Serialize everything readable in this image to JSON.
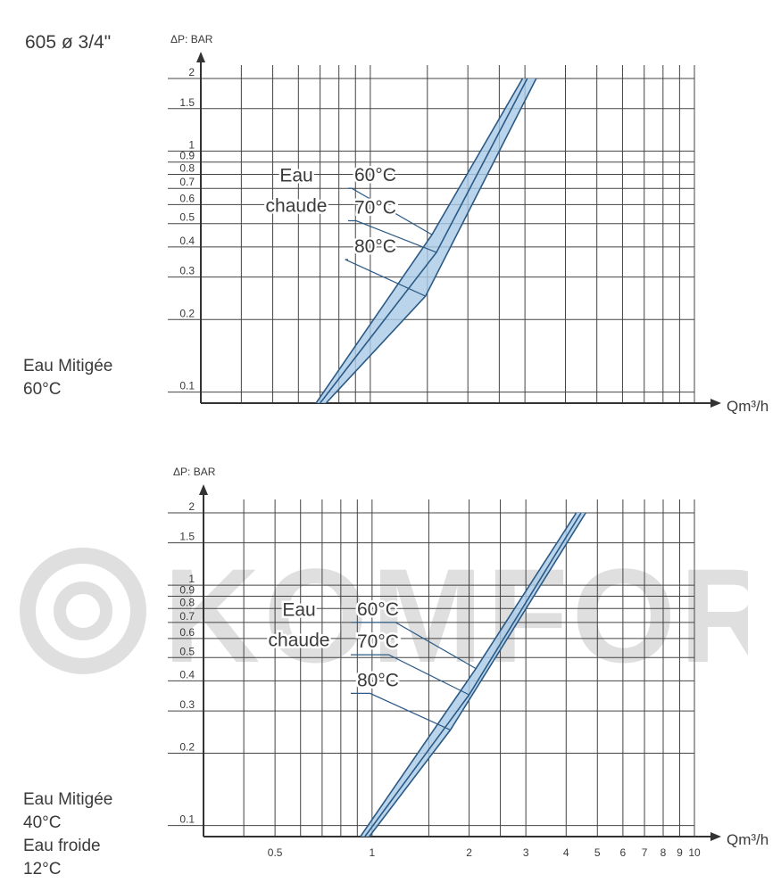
{
  "model_label": "605 ø 3/4\"",
  "watermark_text": "KOMFORT",
  "colors": {
    "grid": "#444444",
    "axis": "#333333",
    "curve_fill": "#a9cbe6",
    "curve_stroke": "#2b5a86",
    "text": "#3a3a3a"
  },
  "chart_data": [
    {
      "type": "line",
      "side_label": "Eau Mitigée\n60°C",
      "ylabel": "ΔP: BAR",
      "xlabel": "Qm³/h",
      "x_scale": "log",
      "y_scale": "log",
      "ylim": [
        0.09,
        2
      ],
      "xlim": [
        0.3,
        10
      ],
      "yticks": [
        "0.1",
        "0.2",
        "0.3",
        "0.4",
        "0.5",
        "0.6",
        "0.7",
        "0.8",
        "0.9",
        "1",
        "1.5",
        "2"
      ],
      "xticks": [],
      "annotations": {
        "group": "Eau\nchaude",
        "temps": [
          "60°C",
          "70°C",
          "80°C"
        ]
      },
      "series": [
        {
          "name": "60°C",
          "points": [
            [
              0.68,
              0.09
            ],
            [
              1.55,
              0.45
            ],
            [
              2.95,
              2.0
            ]
          ]
        },
        {
          "name": "70°C",
          "points": [
            [
              0.7,
              0.09
            ],
            [
              1.6,
              0.38
            ],
            [
              3.05,
              2.0
            ]
          ]
        },
        {
          "name": "80°C",
          "points": [
            [
              0.73,
              0.09
            ],
            [
              1.48,
              0.25
            ],
            [
              3.25,
              2.0
            ]
          ]
        }
      ],
      "grid": true
    },
    {
      "type": "line",
      "side_label": "Eau Mitigée\n40°C\nEau froide\n12°C",
      "ylabel": "ΔP: BAR",
      "xlabel": "Qm³/h",
      "x_scale": "log",
      "y_scale": "log",
      "ylim": [
        0.09,
        2
      ],
      "xlim": [
        0.3,
        10
      ],
      "yticks": [
        "0.1",
        "0.2",
        "0.3",
        "0.4",
        "0.5",
        "0.6",
        "0.7",
        "0.8",
        "0.9",
        "1",
        "1.5",
        "2"
      ],
      "xticks": [
        "0.5",
        "1",
        "2",
        "3",
        "4",
        "5",
        "6",
        "7",
        "8",
        "9",
        "10"
      ],
      "annotations": {
        "group": "Eau\nchaude",
        "temps": [
          "60°C",
          "70°C",
          "80°C"
        ]
      },
      "series": [
        {
          "name": "60°C",
          "points": [
            [
              0.92,
              0.09
            ],
            [
              2.1,
              0.45
            ],
            [
              4.3,
              2.0
            ]
          ]
        },
        {
          "name": "70°C",
          "points": [
            [
              0.95,
              0.09
            ],
            [
              2.0,
              0.35
            ],
            [
              4.45,
              2.0
            ]
          ]
        },
        {
          "name": "80°C",
          "points": [
            [
              0.98,
              0.09
            ],
            [
              1.75,
              0.25
            ],
            [
              4.6,
              2.0
            ]
          ]
        }
      ],
      "grid": true
    }
  ]
}
